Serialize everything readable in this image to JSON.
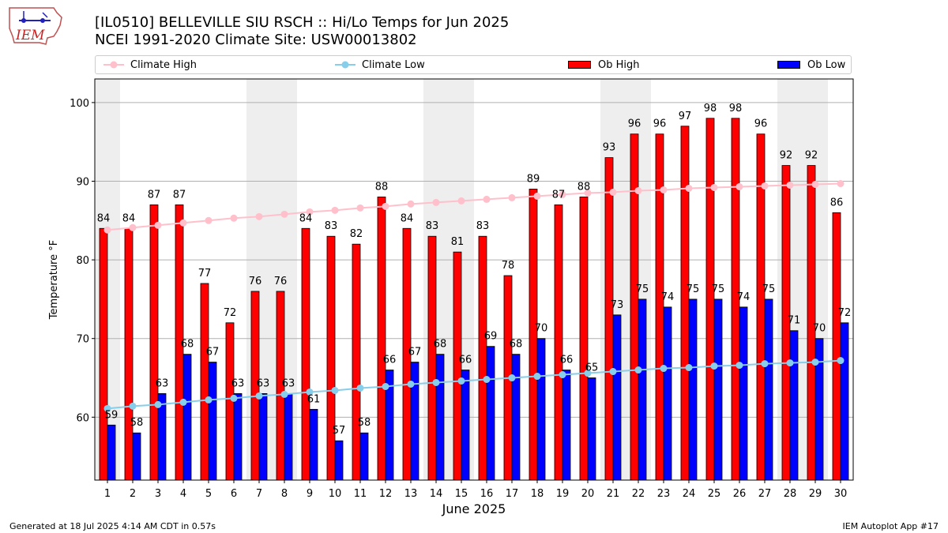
{
  "header": {
    "title_line1": "[IL0510] BELLEVILLE SIU RSCH :: Hi/Lo Temps for Jun 2025",
    "title_line2": "NCEI 1991-2020 Climate Site: USW00013802",
    "logo_text": "IEM"
  },
  "legend": {
    "climate_high": "Climate High",
    "climate_low": "Climate Low",
    "ob_high": "Ob High",
    "ob_low": "Ob Low"
  },
  "footer": {
    "generated": "Generated at 18 Jul 2025 4:14 AM CDT in 0.57s",
    "app": "IEM Autoplot App #17"
  },
  "colors": {
    "ob_high": "#ff0000",
    "ob_low": "#0000ff",
    "climate_high": "#ffc0cb",
    "climate_low": "#87ceeb",
    "weekend_shade": "#eeeeee",
    "grid": "#b0b0b0"
  },
  "chart_data": {
    "type": "bar",
    "xlabel": "June 2025",
    "ylabel": "Temperature °F",
    "ylim": [
      52,
      103
    ],
    "yticks": [
      60,
      70,
      80,
      90,
      100
    ],
    "grid": "horizontal",
    "legend_position": "top",
    "categories": [
      "1",
      "2",
      "3",
      "4",
      "5",
      "6",
      "7",
      "8",
      "9",
      "10",
      "11",
      "12",
      "13",
      "14",
      "15",
      "16",
      "17",
      "18",
      "19",
      "20",
      "21",
      "22",
      "23",
      "24",
      "25",
      "26",
      "27",
      "28",
      "29",
      "30"
    ],
    "weekend_days": [
      1,
      7,
      8,
      14,
      15,
      21,
      22,
      28,
      29
    ],
    "series": [
      {
        "name": "Ob High",
        "kind": "bar",
        "values": [
          84,
          84,
          87,
          87,
          77,
          72,
          76,
          76,
          84,
          83,
          82,
          88,
          84,
          83,
          81,
          83,
          78,
          89,
          87,
          88,
          93,
          96,
          96,
          97,
          98,
          98,
          96,
          92,
          92,
          86
        ]
      },
      {
        "name": "Ob Low",
        "kind": "bar",
        "values": [
          59,
          58,
          63,
          68,
          67,
          63,
          63,
          63,
          61,
          57,
          58,
          66,
          67,
          68,
          66,
          69,
          68,
          70,
          66,
          65,
          73,
          75,
          74,
          75,
          75,
          74,
          75,
          71,
          70,
          72
        ]
      },
      {
        "name": "Climate High",
        "kind": "line",
        "values": [
          83.8,
          84.1,
          84.4,
          84.7,
          85.0,
          85.3,
          85.5,
          85.8,
          86.1,
          86.3,
          86.6,
          86.8,
          87.1,
          87.3,
          87.5,
          87.7,
          87.9,
          88.1,
          88.3,
          88.5,
          88.6,
          88.8,
          88.9,
          89.1,
          89.2,
          89.3,
          89.4,
          89.5,
          89.6,
          89.7
        ]
      },
      {
        "name": "Climate Low",
        "kind": "line",
        "values": [
          61.1,
          61.4,
          61.6,
          61.9,
          62.2,
          62.4,
          62.7,
          62.9,
          63.2,
          63.4,
          63.7,
          63.9,
          64.2,
          64.4,
          64.6,
          64.8,
          65.0,
          65.2,
          65.4,
          65.6,
          65.8,
          66.0,
          66.2,
          66.3,
          66.5,
          66.6,
          66.8,
          66.9,
          67.0,
          67.2
        ]
      }
    ]
  }
}
